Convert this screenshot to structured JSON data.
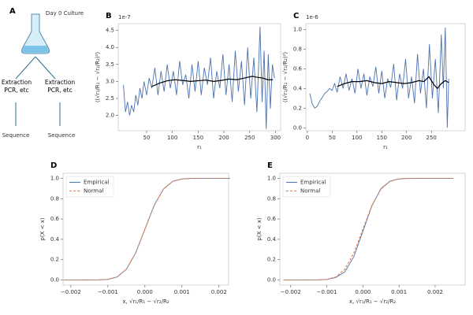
{
  "diagram": {
    "panel_label": "A",
    "flask_label": "Day 0 Culture",
    "left_step": "Extraction PCR, etc",
    "right_step": "Extraction PCR, etc",
    "left_result": "Sequence",
    "right_result": "Sequence"
  },
  "chart_data": [
    {
      "type": "line",
      "panel_label": "B",
      "offset_label": "1e-7",
      "xlabel": "r₁",
      "ylabel": "⟨(√r₁/R₁ − √r₂/R₂)²⟩",
      "xlim": [
        -5,
        310
      ],
      "ylim": [
        1.55,
        4.7
      ],
      "xticks": [
        50,
        100,
        150,
        200,
        250,
        300
      ],
      "yticks": [
        {
          "value": 2,
          "label": "2.0"
        },
        {
          "value": 2.5,
          "label": "2.5"
        },
        {
          "value": 3,
          "label": "3.0"
        },
        {
          "value": 3.5,
          "label": "3.5"
        },
        {
          "value": 4,
          "label": "4.0"
        },
        {
          "value": 4.5,
          "label": "4.5"
        }
      ],
      "series": [
        {
          "color": "#4c72b0",
          "x": [
            5,
            9,
            13,
            17,
            21,
            25,
            29,
            33,
            37,
            41,
            45,
            50,
            55,
            60,
            66,
            72,
            78,
            84,
            90,
            96,
            102,
            108,
            114,
            120,
            126,
            132,
            138,
            144,
            150,
            156,
            162,
            168,
            174,
            180,
            186,
            192,
            198,
            204,
            210,
            216,
            222,
            228,
            234,
            240,
            246,
            252,
            258,
            264,
            270,
            274,
            278,
            282,
            286,
            290,
            294,
            298
          ],
          "values": [
            2.9,
            2.1,
            2.4,
            2.0,
            2.3,
            2.1,
            2.6,
            2.3,
            2.8,
            2.5,
            3.0,
            2.6,
            3.1,
            2.8,
            3.4,
            2.6,
            3.3,
            2.7,
            3.5,
            2.8,
            3.3,
            2.6,
            3.6,
            2.9,
            3.2,
            2.5,
            3.5,
            2.7,
            3.6,
            2.6,
            3.4,
            2.9,
            3.7,
            2.5,
            3.3,
            2.8,
            3.8,
            2.6,
            3.5,
            2.4,
            3.9,
            2.7,
            3.6,
            2.3,
            4.0,
            2.5,
            3.7,
            2.1,
            4.6,
            2.4,
            3.9,
            1.6,
            3.8,
            2.2,
            3.5,
            3.1
          ]
        },
        {
          "color": "#000000",
          "x": [
            60,
            75,
            90,
            105,
            120,
            135,
            150,
            165,
            180,
            195,
            210,
            225,
            240,
            255,
            265,
            275,
            285,
            295
          ],
          "values": [
            2.85,
            2.95,
            3.02,
            3.05,
            3.03,
            3.0,
            3.02,
            3.04,
            3.0,
            3.03,
            3.07,
            3.05,
            3.1,
            3.15,
            3.12,
            3.1,
            3.05,
            3.05
          ]
        }
      ]
    },
    {
      "type": "line",
      "panel_label": "C",
      "offset_label": "1e-6",
      "xlabel": "r₁",
      "ylabel": "⟨(√r₁/R₁ − √r₂/R₂)²⟩",
      "xlim": [
        -3,
        318
      ],
      "ylim": [
        -0.03,
        1.06
      ],
      "xticks": [
        0,
        50,
        100,
        150,
        200,
        250
      ],
      "yticks": [
        {
          "value": 0,
          "label": "0.0"
        },
        {
          "value": 0.2,
          "label": "0.2"
        },
        {
          "value": 0.4,
          "label": "0.4"
        },
        {
          "value": 0.6,
          "label": "0.6"
        },
        {
          "value": 0.8,
          "label": "0.8"
        },
        {
          "value": 1,
          "label": "1.0"
        }
      ],
      "series": [
        {
          "color": "#4c72b0",
          "x": [
            5,
            10,
            15,
            20,
            25,
            30,
            35,
            40,
            45,
            50,
            55,
            60,
            66,
            72,
            78,
            84,
            90,
            96,
            102,
            108,
            114,
            120,
            126,
            132,
            138,
            144,
            150,
            156,
            162,
            168,
            174,
            180,
            186,
            192,
            198,
            204,
            210,
            216,
            222,
            228,
            234,
            240,
            246,
            252,
            258,
            264,
            270,
            274,
            278,
            282,
            285
          ],
          "values": [
            0.35,
            0.24,
            0.2,
            0.22,
            0.27,
            0.31,
            0.35,
            0.37,
            0.4,
            0.38,
            0.45,
            0.36,
            0.52,
            0.4,
            0.55,
            0.38,
            0.5,
            0.35,
            0.6,
            0.4,
            0.55,
            0.33,
            0.52,
            0.42,
            0.62,
            0.35,
            0.58,
            0.3,
            0.5,
            0.41,
            0.65,
            0.28,
            0.55,
            0.4,
            0.7,
            0.3,
            0.52,
            0.25,
            0.75,
            0.35,
            0.6,
            0.2,
            0.85,
            0.3,
            0.7,
            0.15,
            0.95,
            0.4,
            1.02,
            0.0,
            0.5
          ]
        },
        {
          "color": "#000000",
          "x": [
            60,
            75,
            90,
            105,
            120,
            135,
            150,
            165,
            180,
            195,
            210,
            225,
            235,
            245,
            255,
            262,
            270,
            278,
            285
          ],
          "values": [
            0.42,
            0.45,
            0.47,
            0.47,
            0.48,
            0.46,
            0.45,
            0.47,
            0.46,
            0.45,
            0.46,
            0.48,
            0.47,
            0.52,
            0.44,
            0.4,
            0.45,
            0.48,
            0.46
          ]
        }
      ]
    },
    {
      "type": "line",
      "panel_label": "D",
      "xlabel": "x, √r₁/R₁ − √r₂/R₂",
      "ylabel": "p(X < x)",
      "legend": "upper left",
      "xlim": [
        -0.00221,
        0.00226
      ],
      "ylim": [
        -0.05,
        1.05
      ],
      "xticks": [
        {
          "value": -0.002,
          "label": "−0.002"
        },
        {
          "value": -0.001,
          "label": "−0.001"
        },
        {
          "value": 0,
          "label": "0.000"
        },
        {
          "value": 0.001,
          "label": "0.001"
        },
        {
          "value": 0.002,
          "label": "0.002"
        }
      ],
      "yticks": [
        {
          "value": 0,
          "label": "0.0"
        },
        {
          "value": 0.2,
          "label": "0.2"
        },
        {
          "value": 0.4,
          "label": "0.4"
        },
        {
          "value": 0.6,
          "label": "0.6"
        },
        {
          "value": 0.8,
          "label": "0.8"
        },
        {
          "value": 1,
          "label": "1.0"
        }
      ],
      "series": [
        {
          "name": "Empirical",
          "color": "#4c72b0",
          "linestyle": "solid",
          "x": [
            -0.0022,
            -0.0015,
            -0.00125,
            -0.001,
            -0.00075,
            -0.0005,
            -0.00025,
            0,
            0.00025,
            0.0005,
            0.00075,
            0.001,
            0.00125,
            0.0015,
            0.0023
          ],
          "values": [
            0,
            0.0001,
            0.001,
            0.006,
            0.03,
            0.106,
            0.266,
            0.5,
            0.734,
            0.894,
            0.97,
            0.994,
            0.999,
            1,
            1
          ]
        },
        {
          "name": "Normal",
          "color": "#dd8452",
          "linestyle": "dashed",
          "x": [
            -0.0022,
            -0.0015,
            -0.00125,
            -0.001,
            -0.00075,
            -0.0005,
            -0.00025,
            0,
            0.00025,
            0.0005,
            0.00075,
            0.001,
            0.00125,
            0.0015,
            0.0023
          ],
          "values": [
            0,
            0.0001,
            0.001,
            0.006,
            0.03,
            0.106,
            0.266,
            0.5,
            0.734,
            0.894,
            0.97,
            0.994,
            0.999,
            1,
            1
          ]
        }
      ]
    },
    {
      "type": "line",
      "panel_label": "E",
      "xlabel": "x, √r₁/R₁ − √r₂/R₂",
      "ylabel": "p(X < x)",
      "legend": "upper left",
      "xlim": [
        -0.0023,
        0.00283
      ],
      "ylim": [
        -0.05,
        1.05
      ],
      "xticks": [
        {
          "value": -0.002,
          "label": "−0.002"
        },
        {
          "value": -0.001,
          "label": "−0.001"
        },
        {
          "value": 0,
          "label": "0.000"
        },
        {
          "value": 0.001,
          "label": "0.001"
        },
        {
          "value": 0.002,
          "label": "0.002"
        }
      ],
      "yticks": [
        {
          "value": 0,
          "label": "0.0"
        },
        {
          "value": 0.2,
          "label": "0.2"
        },
        {
          "value": 0.4,
          "label": "0.4"
        },
        {
          "value": 0.6,
          "label": "0.6"
        },
        {
          "value": 0.8,
          "label": "0.8"
        },
        {
          "value": 1,
          "label": "1.0"
        }
      ],
      "series": [
        {
          "name": "Empirical",
          "color": "#4c72b0",
          "linestyle": "solid",
          "x": [
            -0.0022,
            -0.0015,
            -0.00125,
            -0.001,
            -0.00075,
            -0.0005,
            -0.00025,
            0,
            0.00025,
            0.0005,
            0.00075,
            0.001,
            0.00125,
            0.0015,
            0.0025
          ],
          "values": [
            0,
            0.0001,
            0.001,
            0.005,
            0.025,
            0.08,
            0.23,
            0.48,
            0.73,
            0.9,
            0.972,
            0.994,
            0.999,
            1,
            1
          ]
        },
        {
          "name": "Normal",
          "color": "#dd8452",
          "linestyle": "dashed",
          "x": [
            -0.0022,
            -0.0015,
            -0.00125,
            -0.001,
            -0.00075,
            -0.0005,
            -0.00025,
            0,
            0.00025,
            0.0005,
            0.00075,
            0.001,
            0.00125,
            0.0015,
            0.0025
          ],
          "values": [
            0,
            0.0001,
            0.001,
            0.006,
            0.03,
            0.106,
            0.266,
            0.5,
            0.734,
            0.894,
            0.97,
            0.994,
            0.999,
            1,
            1
          ]
        }
      ]
    }
  ]
}
